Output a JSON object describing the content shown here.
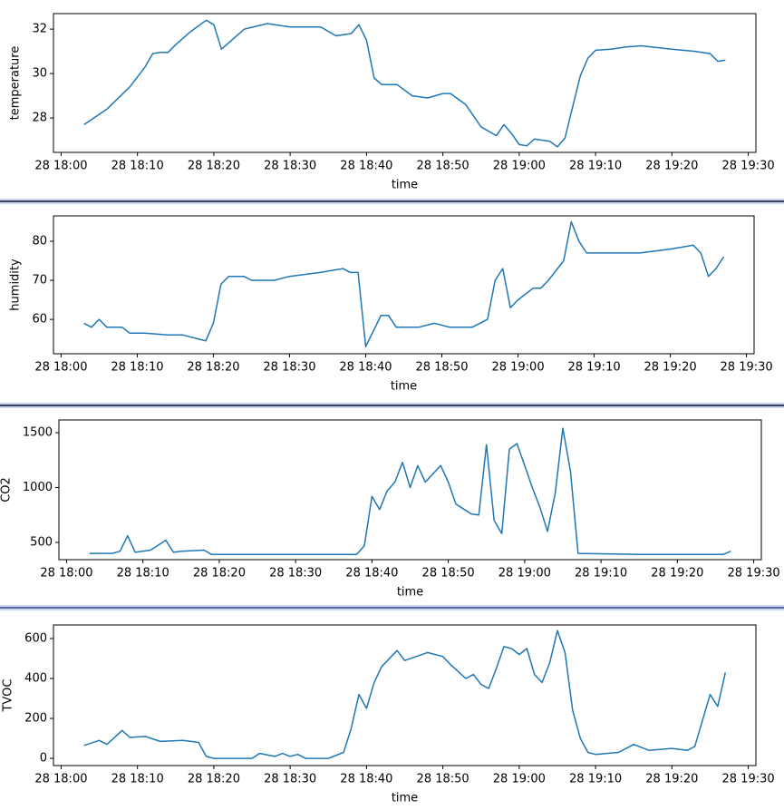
{
  "chart_data": [
    {
      "type": "line",
      "xlabel": "time",
      "ylabel": "temperature",
      "color": "#1f77b4",
      "xlim": [
        "28 17:59",
        "28 19:31"
      ],
      "xticks": [
        "28 18:00",
        "28 18:10",
        "28 18:20",
        "28 18:30",
        "28 18:40",
        "28 18:50",
        "28 19:00",
        "28 19:10",
        "28 19:20",
        "28 19:30"
      ],
      "ylim": [
        26.45,
        32.7
      ],
      "yticks": [
        28,
        30,
        32
      ],
      "x": [
        "28 18:03",
        "28 18:06",
        "28 18:09",
        "28 18:11",
        "28 18:12",
        "28 18:13",
        "28 18:14",
        "28 18:15",
        "28 18:17",
        "28 18:19",
        "28 18:20",
        "28 18:21",
        "28 18:22",
        "28 18:24",
        "28 18:27",
        "28 18:30",
        "28 18:34",
        "28 18:36",
        "28 18:38",
        "28 18:39",
        "28 18:40",
        "28 18:41",
        "28 18:42",
        "28 18:44",
        "28 18:46",
        "28 18:48",
        "28 18:50",
        "28 18:51",
        "28 18:53",
        "28 18:54",
        "28 18:55",
        "28 18:57",
        "28 18:58",
        "28 18:59",
        "28 19:00",
        "28 19:01",
        "28 19:02",
        "28 19:04",
        "28 19:05",
        "28 19:06",
        "28 19:07",
        "28 19:08",
        "28 19:09",
        "28 19:10",
        "28 19:12",
        "28 19:14",
        "28 19:16",
        "28 19:20",
        "28 19:23",
        "28 19:25",
        "28 19:26",
        "28 19:27"
      ],
      "values": [
        27.7,
        28.4,
        29.4,
        30.3,
        30.9,
        30.95,
        30.95,
        31.3,
        31.9,
        32.4,
        32.2,
        31.1,
        31.4,
        32.0,
        32.25,
        32.1,
        32.1,
        31.7,
        31.8,
        32.2,
        31.5,
        29.8,
        29.5,
        29.5,
        29.0,
        28.9,
        29.1,
        29.1,
        28.6,
        28.1,
        27.6,
        27.2,
        27.7,
        27.3,
        26.8,
        26.75,
        27.05,
        26.95,
        26.7,
        27.1,
        28.5,
        29.9,
        30.7,
        31.05,
        31.1,
        31.2,
        31.25,
        31.1,
        31.0,
        30.9,
        30.55,
        30.6
      ]
    },
    {
      "type": "line",
      "xlabel": "time",
      "ylabel": "humidity",
      "color": "#1f77b4",
      "xlim": [
        "28 17:59",
        "28 19:31"
      ],
      "xticks": [
        "28 18:00",
        "28 18:10",
        "28 18:20",
        "28 18:30",
        "28 18:40",
        "28 18:50",
        "28 19:00",
        "28 19:10",
        "28 19:20",
        "28 19:30"
      ],
      "ylim": [
        51.2,
        86.5
      ],
      "yticks": [
        60,
        70,
        80
      ],
      "x": [
        "28 18:03",
        "28 18:04",
        "28 18:05",
        "28 18:06",
        "28 18:08",
        "28 18:09",
        "28 18:11",
        "28 18:14",
        "28 18:16",
        "28 18:18",
        "28 18:19",
        "28 18:20",
        "28 18:21",
        "28 18:22",
        "28 18:24",
        "28 18:25",
        "28 18:28",
        "28 18:30",
        "28 18:34",
        "28 18:37",
        "28 18:38",
        "28 18:39",
        "28 18:40",
        "28 18:41",
        "28 18:42",
        "28 18:43",
        "28 18:44",
        "28 18:47",
        "28 18:49",
        "28 18:51",
        "28 18:54",
        "28 18:56",
        "28 18:57",
        "28 18:58",
        "28 18:59",
        "28 19:00",
        "28 19:02",
        "28 19:03",
        "28 19:04",
        "28 19:06",
        "28 19:07",
        "28 19:08",
        "28 19:09",
        "28 19:13",
        "28 19:16",
        "28 19:20",
        "28 19:23",
        "28 19:24",
        "28 19:25",
        "28 19:26",
        "28 19:27"
      ],
      "values": [
        59,
        58,
        60,
        58,
        58,
        56.5,
        56.5,
        56,
        56,
        55,
        54.5,
        59,
        69,
        71,
        71,
        70,
        70,
        71,
        72,
        73,
        72,
        72,
        53,
        57,
        61,
        61,
        58,
        58,
        59,
        58,
        58,
        60,
        70,
        73,
        63,
        65,
        68,
        68,
        70,
        75,
        85,
        80,
        77,
        77,
        77,
        78,
        79,
        77,
        71,
        73,
        76
      ]
    },
    {
      "type": "line",
      "xlabel": "time",
      "ylabel": "CO2",
      "color": "#1f77b4",
      "xlim": [
        "28 17:59",
        "28 19:31"
      ],
      "xticks": [
        "28 18:00",
        "28 18:10",
        "28 18:20",
        "28 18:30",
        "28 18:40",
        "28 18:50",
        "28 19:00",
        "28 19:10",
        "28 19:20",
        "28 19:30"
      ],
      "ylim": [
        343,
        1616
      ],
      "yticks": [
        500,
        1000,
        1500
      ],
      "x": [
        "28 18:03",
        "28 18:06",
        "28 18:07",
        "28 18:08",
        "28 18:09",
        "28 18:11",
        "28 18:13",
        "28 18:14",
        "28 18:15",
        "28 18:18",
        "28 18:19",
        "28 18:23",
        "28 18:38",
        "28 18:39",
        "28 18:40",
        "28 18:41",
        "28 18:42",
        "28 18:43",
        "28 18:44",
        "28 18:45",
        "28 18:46",
        "28 18:47",
        "28 18:49",
        "28 18:50",
        "28 18:51",
        "28 18:53",
        "28 18:54",
        "28 18:55",
        "28 18:56",
        "28 18:57",
        "28 18:58",
        "28 18:59",
        "28 19:00",
        "28 19:01",
        "28 19:02",
        "28 19:03",
        "28 19:04",
        "28 19:05",
        "28 19:06",
        "28 19:07",
        "28 19:15",
        "28 19:26",
        "28 19:27"
      ],
      "values": [
        400,
        400,
        420,
        560,
        410,
        430,
        520,
        410,
        420,
        430,
        390,
        390,
        390,
        470,
        920,
        800,
        970,
        1050,
        1230,
        1000,
        1200,
        1050,
        1200,
        1050,
        850,
        760,
        750,
        1390,
        700,
        580,
        1350,
        1400,
        1200,
        1000,
        820,
        600,
        950,
        1540,
        1150,
        400,
        390,
        390,
        420
      ]
    },
    {
      "type": "line",
      "xlabel": "time",
      "ylabel": "TVOC",
      "color": "#1f77b4",
      "xlim": [
        "28 17:59",
        "28 19:31"
      ],
      "xticks": [
        "28 18:00",
        "28 18:10",
        "28 18:20",
        "28 18:30",
        "28 18:40",
        "28 18:50",
        "28 19:00",
        "28 19:10",
        "28 19:20",
        "28 19:30"
      ],
      "ylim": [
        -36,
        668
      ],
      "yticks": [
        0,
        200,
        400,
        600
      ],
      "x": [
        "28 18:03",
        "28 18:05",
        "28 18:06",
        "28 18:08",
        "28 18:09",
        "28 18:11",
        "28 18:13",
        "28 18:16",
        "28 18:18",
        "28 18:19",
        "28 18:20",
        "28 18:25",
        "28 18:26",
        "28 18:28",
        "28 18:29",
        "28 18:30",
        "28 18:31",
        "28 18:32",
        "28 18:35",
        "28 18:37",
        "28 18:38",
        "28 18:39",
        "28 18:40",
        "28 18:41",
        "28 18:42",
        "28 18:44",
        "28 18:45",
        "28 18:48",
        "28 18:50",
        "28 18:51",
        "28 18:53",
        "28 18:54",
        "28 18:55",
        "28 18:56",
        "28 18:57",
        "28 18:58",
        "28 18:59",
        "28 19:00",
        "28 19:01",
        "28 19:02",
        "28 19:03",
        "28 19:04",
        "28 19:05",
        "28 19:06",
        "28 19:07",
        "28 19:08",
        "28 19:09",
        "28 19:10",
        "28 19:13",
        "28 19:15",
        "28 19:17",
        "28 19:20",
        "28 19:22",
        "28 19:23",
        "28 19:25",
        "28 19:26",
        "28 19:27"
      ],
      "values": [
        65,
        90,
        70,
        140,
        105,
        110,
        85,
        90,
        80,
        10,
        0,
        0,
        25,
        10,
        25,
        10,
        20,
        0,
        0,
        30,
        150,
        320,
        250,
        380,
        460,
        540,
        490,
        530,
        510,
        470,
        400,
        420,
        370,
        350,
        450,
        560,
        550,
        520,
        550,
        420,
        380,
        480,
        640,
        530,
        240,
        100,
        30,
        20,
        30,
        70,
        40,
        50,
        40,
        60,
        320,
        260,
        430
      ]
    }
  ]
}
